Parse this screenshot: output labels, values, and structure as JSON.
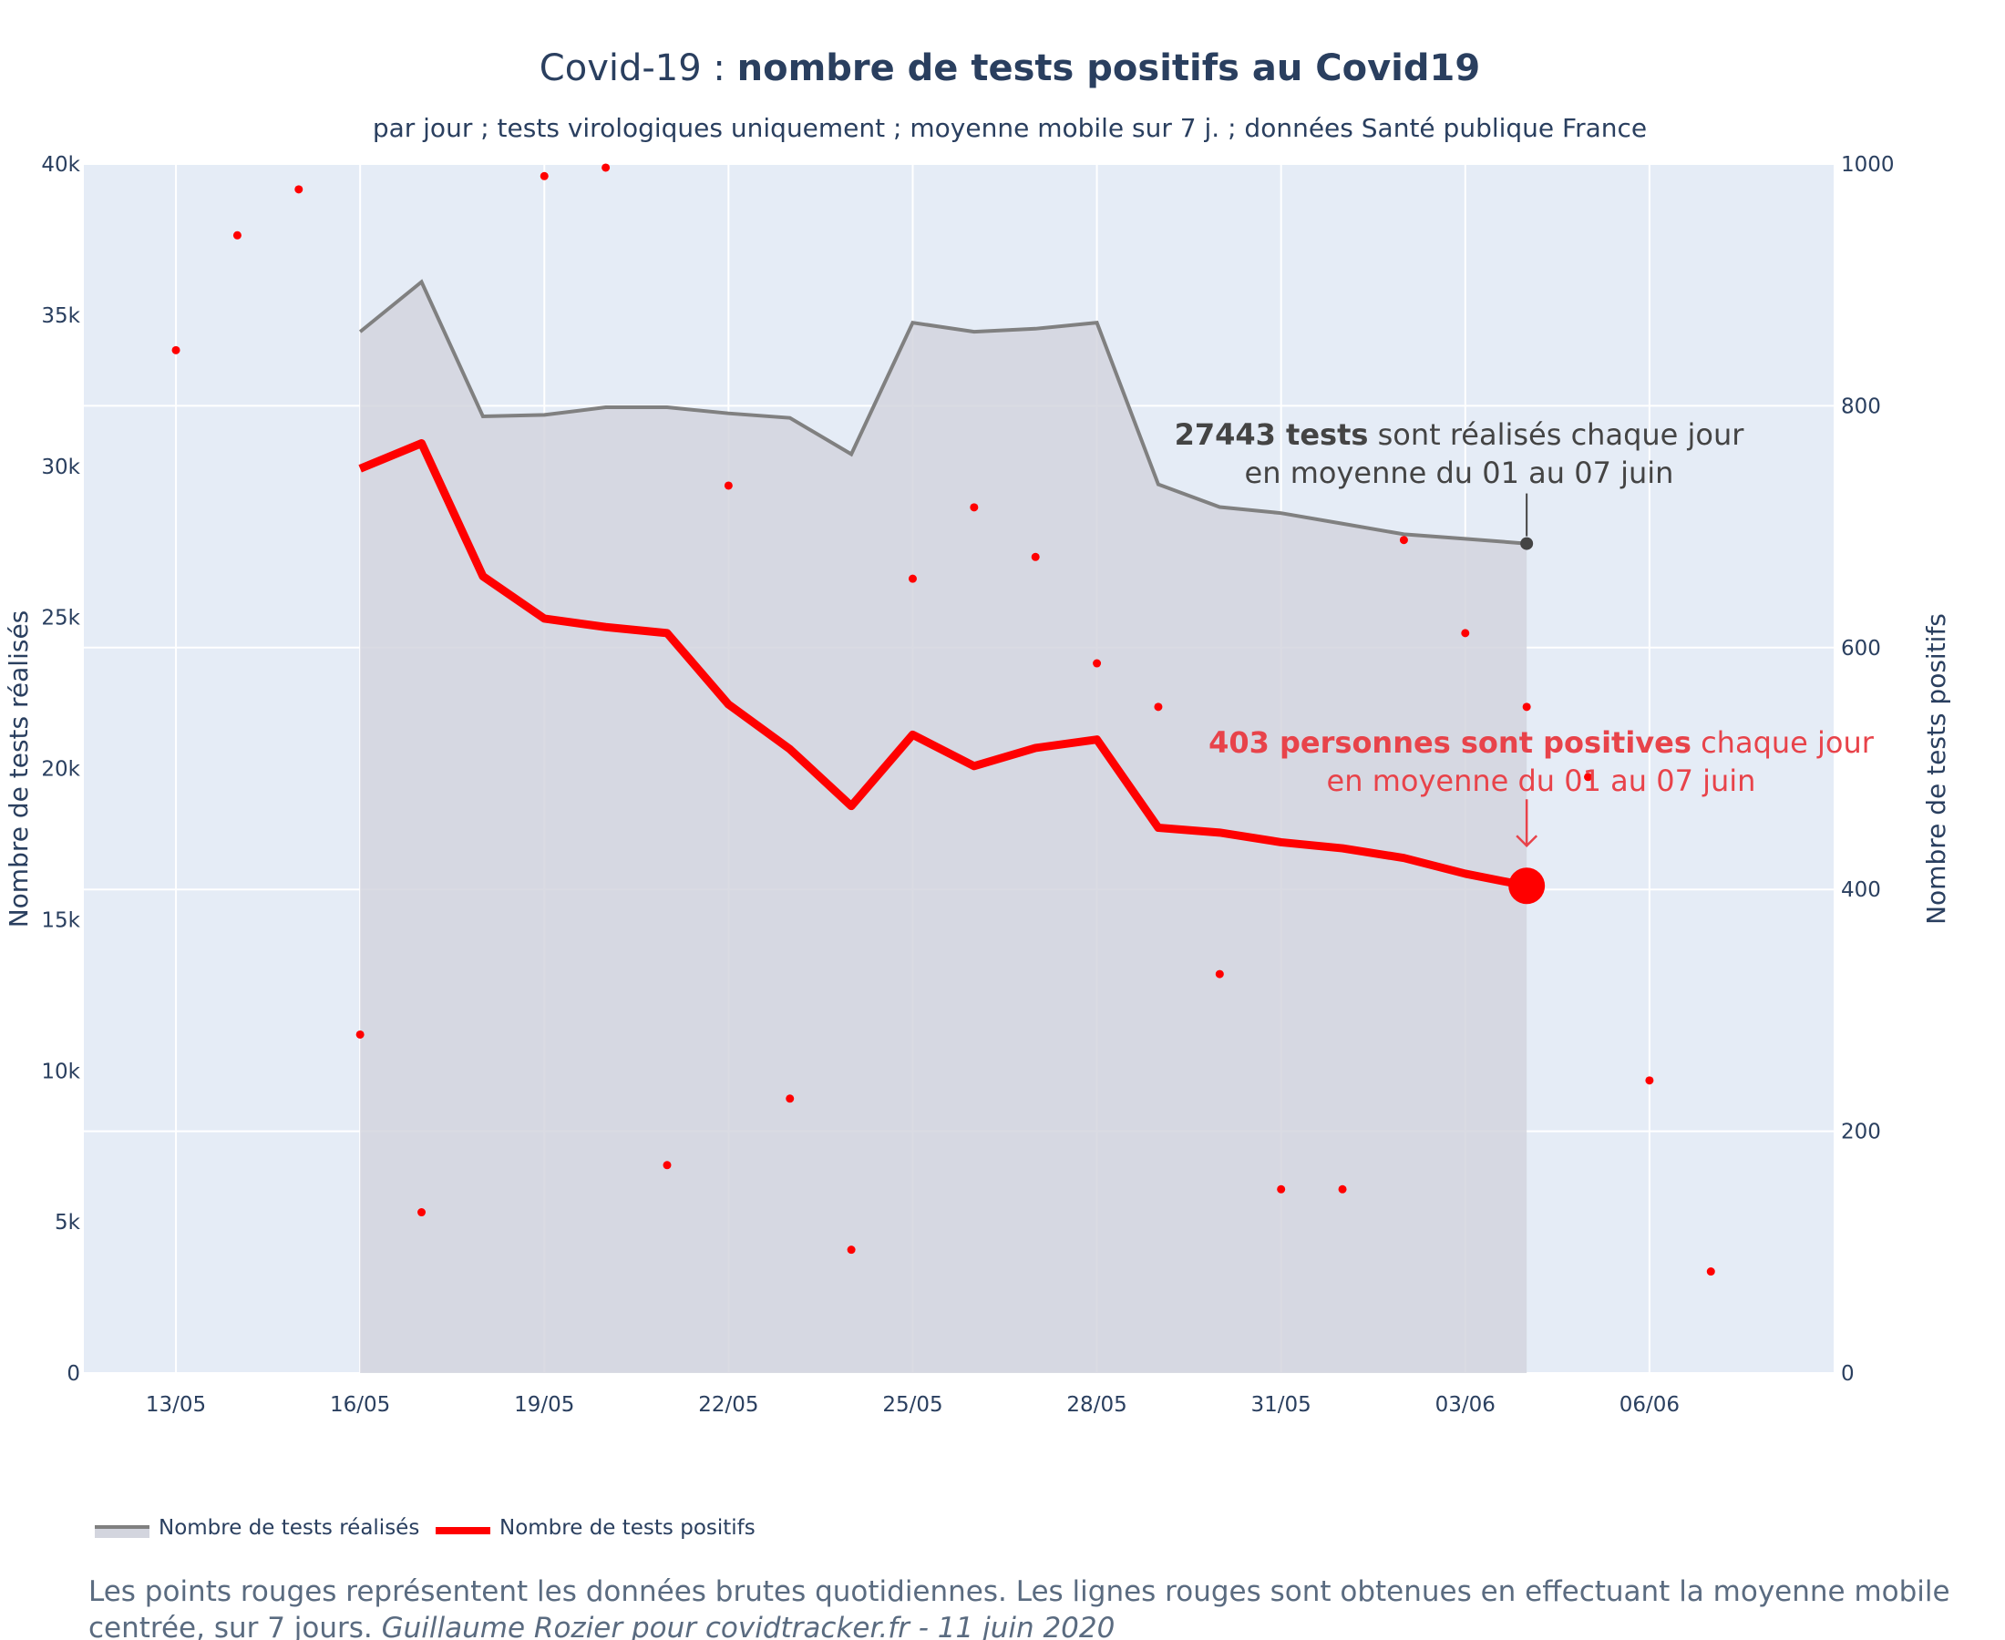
{
  "chart_data": {
    "type": "line",
    "title_light": "Covid-19 : ",
    "title_bold": "nombre de tests positifs au Covid19",
    "subtitle": "par jour ; tests virologiques uniquement ; moyenne mobile sur 7 j. ; données Santé publique France",
    "x_ticks": [
      {
        "day": 0,
        "label": "13/05"
      },
      {
        "day": 3,
        "label": "16/05"
      },
      {
        "day": 6,
        "label": "19/05"
      },
      {
        "day": 9,
        "label": "22/05"
      },
      {
        "day": 12,
        "label": "25/05"
      },
      {
        "day": 15,
        "label": "28/05"
      },
      {
        "day": 18,
        "label": "31/05"
      },
      {
        "day": 21,
        "label": "03/06"
      },
      {
        "day": 24,
        "label": "06/06"
      }
    ],
    "xlim": [
      "2020-05-11 12:00",
      "2020-06-09 00:00"
    ],
    "y_left": {
      "label": "Nombre de tests réalisés",
      "range": [
        0,
        40000
      ],
      "ticks": [
        {
          "value": 0,
          "label": "0"
        },
        {
          "value": 5000,
          "label": "5k"
        },
        {
          "value": 10000,
          "label": "10k"
        },
        {
          "value": 15000,
          "label": "15k"
        },
        {
          "value": 20000,
          "label": "20k"
        },
        {
          "value": 25000,
          "label": "25k"
        },
        {
          "value": 30000,
          "label": "30k"
        },
        {
          "value": 35000,
          "label": "35k"
        },
        {
          "value": 40000,
          "label": "40k"
        }
      ]
    },
    "y_right": {
      "label": "Nombre de tests positifs",
      "range": [
        0,
        1000
      ],
      "ticks": [
        {
          "value": 0,
          "label": "0"
        },
        {
          "value": 200,
          "label": "200"
        },
        {
          "value": 400,
          "label": "400"
        },
        {
          "value": 600,
          "label": "600"
        },
        {
          "value": 800,
          "label": "800"
        },
        {
          "value": 1000,
          "label": "1000"
        }
      ]
    },
    "series": [
      {
        "name": "Nombre de tests réalisés",
        "axis": "left",
        "style": "area",
        "color": "#808080",
        "fill": "#d3d5de",
        "x": [
          "2020-05-16",
          "2020-05-17",
          "2020-05-18",
          "2020-05-19",
          "2020-05-20",
          "2020-05-21",
          "2020-05-22",
          "2020-05-23",
          "2020-05-24",
          "2020-05-25",
          "2020-05-26",
          "2020-05-27",
          "2020-05-28",
          "2020-05-29",
          "2020-05-30",
          "2020-05-31",
          "2020-06-01",
          "2020-06-02",
          "2020-06-03",
          "2020-06-04"
        ],
        "values": [
          34450,
          36100,
          31650,
          31700,
          31950,
          31950,
          31750,
          31600,
          30400,
          34750,
          34450,
          34550,
          34750,
          29400,
          28650,
          28450,
          28100,
          27750,
          27600,
          27443
        ]
      },
      {
        "name": "Nombre de tests positifs",
        "axis": "right",
        "style": "line",
        "color": "#ff0000",
        "x": [
          "2020-05-16",
          "2020-05-17",
          "2020-05-18",
          "2020-05-19",
          "2020-05-20",
          "2020-05-21",
          "2020-05-22",
          "2020-05-23",
          "2020-05-24",
          "2020-05-25",
          "2020-05-26",
          "2020-05-27",
          "2020-05-28",
          "2020-05-29",
          "2020-05-30",
          "2020-05-31",
          "2020-06-01",
          "2020-06-02",
          "2020-06-03",
          "2020-06-04"
        ],
        "values": [
          748,
          769,
          659,
          624,
          617,
          612,
          553,
          516,
          469,
          528,
          502,
          517,
          524,
          451,
          447,
          439,
          434,
          426,
          413,
          403
        ]
      },
      {
        "name": "raw_daily_positives",
        "axis": "right",
        "style": "scatter",
        "color": "#ff0000",
        "x": [
          "2020-05-13",
          "2020-05-14",
          "2020-05-15",
          "2020-05-16",
          "2020-05-17",
          "2020-05-19",
          "2020-05-20",
          "2020-05-21",
          "2020-05-22",
          "2020-05-23",
          "2020-05-24",
          "2020-05-25",
          "2020-05-26",
          "2020-05-27",
          "2020-05-28",
          "2020-05-29",
          "2020-05-30",
          "2020-05-31",
          "2020-06-01",
          "2020-06-02",
          "2020-06-03",
          "2020-06-04",
          "2020-06-05",
          "2020-06-06",
          "2020-06-07"
        ],
        "values": [
          846,
          941,
          979,
          280,
          133,
          990,
          997,
          172,
          734,
          227,
          102,
          657,
          716,
          675,
          587,
          551,
          330,
          152,
          152,
          689,
          612,
          551,
          493,
          242,
          84
        ]
      }
    ],
    "annotations": [
      {
        "bold": "27443 tests",
        "text1": " sont réalisés chaque jour",
        "text2": "en moyenne du 01 au 07 juin"
      },
      {
        "bold": "403 personnes sont positives",
        "text1": " chaque jour",
        "text2": "en moyenne du 01 au 07 juin"
      }
    ],
    "legend": {
      "position": "bottom-left",
      "items": [
        "Nombre de tests réalisés",
        "Nombre de tests positifs"
      ]
    },
    "grid": true,
    "plot_bg": "#e5ecf6",
    "footnote": {
      "line1": "Les points rouges représentent les données brutes quotidiennes. Les lignes rouges sont obtenues en effectuant la moyenne mobile",
      "line2_plain": "centrée, sur 7 jours. ",
      "line2_italic": "Guillaume Rozier pour covidtracker.fr - 11 juin 2020"
    }
  }
}
